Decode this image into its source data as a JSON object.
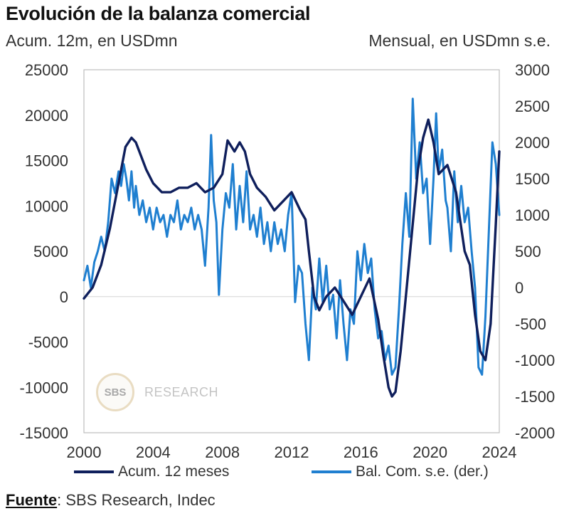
{
  "header": {
    "title": "Evolución de la balanza comercial",
    "subtitle_left": "Acum. 12m, en USDmn",
    "subtitle_right": "Mensual, en USDmn s.e."
  },
  "watermark": {
    "logo": "SBS",
    "text": "RESEARCH"
  },
  "legend": {
    "acum_label": "Acum. 12 meses",
    "bal_label": "Bal. Com. s.e. (der.)"
  },
  "footer": {
    "source_label": "Fuente",
    "source_text": ": SBS Research, Indec"
  },
  "colors": {
    "acum": "#0f1f5c",
    "bal": "#1f7fd0",
    "axis": "#bdbdbd",
    "zero": "#d5d5d5"
  },
  "chart_data": {
    "type": "line",
    "xlim": [
      2000,
      2024
    ],
    "x_ticks": [
      "2000",
      "2004",
      "2008",
      "2012",
      "2016",
      "2020",
      "2024"
    ],
    "y_left": {
      "lim": [
        -15000,
        25000
      ],
      "ticks": [
        "25000",
        "20000",
        "15000",
        "10000",
        "5000",
        "0",
        "-5000",
        "-10000",
        "-15000"
      ]
    },
    "y_right": {
      "lim": [
        -2000,
        3000
      ],
      "ticks": [
        "3000",
        "2500",
        "2000",
        "1500",
        "1000",
        "500",
        "0",
        "-500",
        "-1000",
        "-1500",
        "-2000"
      ]
    },
    "series": [
      {
        "name": "Acum. 12 meses",
        "axis": "left",
        "points": [
          [
            2000,
            -200
          ],
          [
            2000.5,
            1000
          ],
          [
            2001,
            3500
          ],
          [
            2001.5,
            7500
          ],
          [
            2002,
            12500
          ],
          [
            2002.4,
            16500
          ],
          [
            2002.75,
            17500
          ],
          [
            2003,
            17000
          ],
          [
            2003.3,
            15500
          ],
          [
            2003.6,
            14000
          ],
          [
            2004,
            12500
          ],
          [
            2004.5,
            11500
          ],
          [
            2005,
            11500
          ],
          [
            2005.5,
            12000
          ],
          [
            2006,
            12000
          ],
          [
            2006.5,
            12500
          ],
          [
            2007,
            11500
          ],
          [
            2007.5,
            12000
          ],
          [
            2008,
            13500
          ],
          [
            2008.3,
            17200
          ],
          [
            2008.7,
            16000
          ],
          [
            2009,
            17000
          ],
          [
            2009.3,
            16000
          ],
          [
            2009.6,
            13500
          ],
          [
            2010,
            12000
          ],
          [
            2010.5,
            11000
          ],
          [
            2011,
            9500
          ],
          [
            2011.5,
            10500
          ],
          [
            2012,
            11500
          ],
          [
            2012.5,
            9500
          ],
          [
            2012.8,
            8500
          ],
          [
            2013,
            5000
          ],
          [
            2013.3,
            0
          ],
          [
            2013.6,
            -1500
          ],
          [
            2014,
            0
          ],
          [
            2014.5,
            1000
          ],
          [
            2015,
            -500
          ],
          [
            2015.5,
            -2000
          ],
          [
            2016,
            0
          ],
          [
            2016.5,
            2000
          ],
          [
            2017,
            -2500
          ],
          [
            2017.3,
            -6500
          ],
          [
            2017.6,
            -10000
          ],
          [
            2017.8,
            -11000
          ],
          [
            2018,
            -10500
          ],
          [
            2018.3,
            -6000
          ],
          [
            2018.6,
            0
          ],
          [
            2019,
            8000
          ],
          [
            2019.3,
            14000
          ],
          [
            2019.6,
            17500
          ],
          [
            2019.9,
            19500
          ],
          [
            2020.2,
            17000
          ],
          [
            2020.5,
            13500
          ],
          [
            2021,
            14500
          ],
          [
            2021.5,
            11500
          ],
          [
            2022,
            5000
          ],
          [
            2022.3,
            3500
          ],
          [
            2022.6,
            -2000
          ],
          [
            2022.9,
            -6000
          ],
          [
            2023.2,
            -7000
          ],
          [
            2023.5,
            -3000
          ],
          [
            2023.8,
            8000
          ],
          [
            2024,
            16000
          ]
        ]
      },
      {
        "name": "Bal. Com. s.e. (der.)",
        "axis": "right",
        "points": [
          [
            2000,
            100
          ],
          [
            2000.2,
            300
          ],
          [
            2000.4,
            0
          ],
          [
            2000.6,
            350
          ],
          [
            2000.8,
            500
          ],
          [
            2001,
            700
          ],
          [
            2001.2,
            500
          ],
          [
            2001.4,
            900
          ],
          [
            2001.6,
            1500
          ],
          [
            2001.8,
            1300
          ],
          [
            2002,
            1600
          ],
          [
            2002.15,
            1400
          ],
          [
            2002.3,
            1700
          ],
          [
            2002.45,
            1500
          ],
          [
            2002.6,
            1200
          ],
          [
            2002.75,
            1600
          ],
          [
            2002.9,
            1100
          ],
          [
            2003,
            1400
          ],
          [
            2003.2,
            1000
          ],
          [
            2003.4,
            1200
          ],
          [
            2003.6,
            900
          ],
          [
            2003.8,
            1100
          ],
          [
            2004,
            800
          ],
          [
            2004.2,
            1100
          ],
          [
            2004.4,
            900
          ],
          [
            2004.6,
            1000
          ],
          [
            2004.8,
            700
          ],
          [
            2005,
            1000
          ],
          [
            2005.2,
            900
          ],
          [
            2005.4,
            1200
          ],
          [
            2005.6,
            800
          ],
          [
            2005.8,
            1000
          ],
          [
            2006,
            900
          ],
          [
            2006.2,
            1100
          ],
          [
            2006.4,
            800
          ],
          [
            2006.6,
            1000
          ],
          [
            2006.8,
            800
          ],
          [
            2007,
            300
          ],
          [
            2007.2,
            1100
          ],
          [
            2007.35,
            2100
          ],
          [
            2007.5,
            1200
          ],
          [
            2007.65,
            900
          ],
          [
            2007.8,
            -100
          ],
          [
            2008,
            800
          ],
          [
            2008.2,
            1300
          ],
          [
            2008.4,
            1100
          ],
          [
            2008.6,
            1700
          ],
          [
            2008.8,
            800
          ],
          [
            2009,
            1400
          ],
          [
            2009.2,
            900
          ],
          [
            2009.4,
            1600
          ],
          [
            2009.6,
            800
          ],
          [
            2009.8,
            1000
          ],
          [
            2010,
            700
          ],
          [
            2010.2,
            1100
          ],
          [
            2010.4,
            600
          ],
          [
            2010.6,
            900
          ],
          [
            2010.8,
            500
          ],
          [
            2011,
            900
          ],
          [
            2011.2,
            600
          ],
          [
            2011.4,
            800
          ],
          [
            2011.6,
            500
          ],
          [
            2011.8,
            1000
          ],
          [
            2012,
            1300
          ],
          [
            2012.2,
            -200
          ],
          [
            2012.4,
            300
          ],
          [
            2012.6,
            200
          ],
          [
            2012.8,
            -500
          ],
          [
            2013,
            -1000
          ],
          [
            2013.2,
            0
          ],
          [
            2013.4,
            -300
          ],
          [
            2013.6,
            400
          ],
          [
            2013.8,
            -200
          ],
          [
            2014,
            300
          ],
          [
            2014.2,
            -300
          ],
          [
            2014.4,
            -100
          ],
          [
            2014.6,
            -700
          ],
          [
            2014.8,
            100
          ],
          [
            2015,
            -500
          ],
          [
            2015.2,
            -1000
          ],
          [
            2015.4,
            -300
          ],
          [
            2015.6,
            -500
          ],
          [
            2015.8,
            500
          ],
          [
            2016,
            100
          ],
          [
            2016.2,
            600
          ],
          [
            2016.4,
            200
          ],
          [
            2016.6,
            400
          ],
          [
            2016.8,
            -300
          ],
          [
            2017,
            -700
          ],
          [
            2017.2,
            -600
          ],
          [
            2017.4,
            -1000
          ],
          [
            2017.6,
            -800
          ],
          [
            2017.8,
            -1200
          ],
          [
            2018,
            -1100
          ],
          [
            2018.2,
            -300
          ],
          [
            2018.4,
            600
          ],
          [
            2018.6,
            1300
          ],
          [
            2018.8,
            700
          ],
          [
            2019,
            2600
          ],
          [
            2019.2,
            1500
          ],
          [
            2019.4,
            2000
          ],
          [
            2019.6,
            1300
          ],
          [
            2019.8,
            1500
          ],
          [
            2020,
            600
          ],
          [
            2020.2,
            1500
          ],
          [
            2020.35,
            2400
          ],
          [
            2020.5,
            1600
          ],
          [
            2020.7,
            1900
          ],
          [
            2020.9,
            1200
          ],
          [
            2021,
            1100
          ],
          [
            2021.2,
            500
          ],
          [
            2021.4,
            1600
          ],
          [
            2021.6,
            900
          ],
          [
            2021.8,
            1400
          ],
          [
            2022,
            900
          ],
          [
            2022.2,
            1100
          ],
          [
            2022.4,
            500
          ],
          [
            2022.6,
            0
          ],
          [
            2022.8,
            -1100
          ],
          [
            2023,
            -1200
          ],
          [
            2023.2,
            -400
          ],
          [
            2023.4,
            800
          ],
          [
            2023.6,
            2000
          ],
          [
            2023.8,
            1700
          ],
          [
            2024,
            1000
          ]
        ]
      }
    ]
  }
}
